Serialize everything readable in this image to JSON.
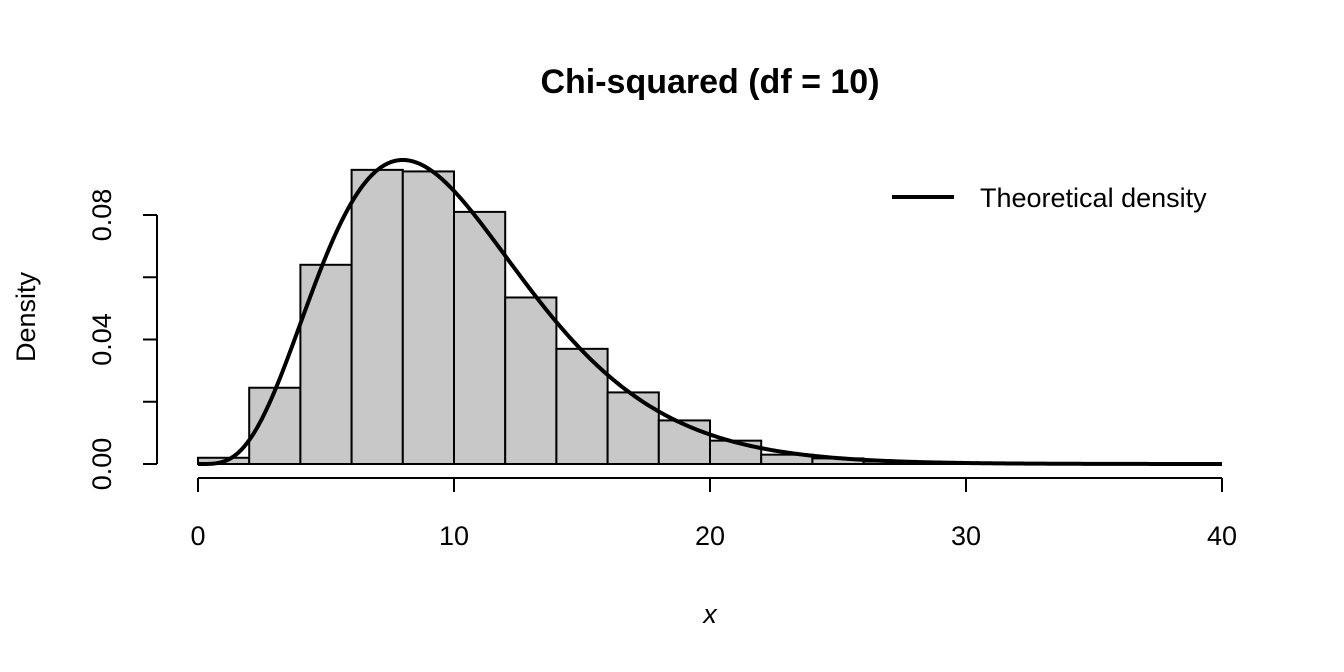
{
  "chart_data": {
    "type": "bar",
    "title": "Chi-squared (df = 10)",
    "xlabel": "x",
    "ylabel": "Density",
    "xlim": [
      0,
      40
    ],
    "ylim": [
      0,
      0.08
    ],
    "x_ticks": [
      0,
      10,
      20,
      30,
      40
    ],
    "x_tick_labels": [
      "0",
      "10",
      "20",
      "30",
      "40"
    ],
    "y_ticks": [
      0,
      0.02,
      0.04,
      0.06,
      0.08
    ],
    "y_tick_labels": [
      "0.00",
      "",
      "0.04",
      "",
      "0.08"
    ],
    "grid": false,
    "legend_position": "top-right",
    "bin_width": 2,
    "bin_starts": [
      0,
      2,
      4,
      6,
      8,
      10,
      12,
      14,
      16,
      18,
      20,
      22,
      24,
      26,
      28,
      30,
      32,
      34,
      36,
      38
    ],
    "values": [
      0.002,
      0.0245,
      0.064,
      0.0945,
      0.094,
      0.081,
      0.0535,
      0.037,
      0.023,
      0.014,
      0.0075,
      0.003,
      0.0018,
      0.0008,
      0.0003,
      0.0001,
      0,
      0,
      0,
      0
    ],
    "bar_color": "#c8c8c8",
    "series": [
      {
        "name": "Theoretical density",
        "type": "line",
        "distribution": "chi-squared",
        "df": 10,
        "color": "#000000"
      }
    ]
  }
}
